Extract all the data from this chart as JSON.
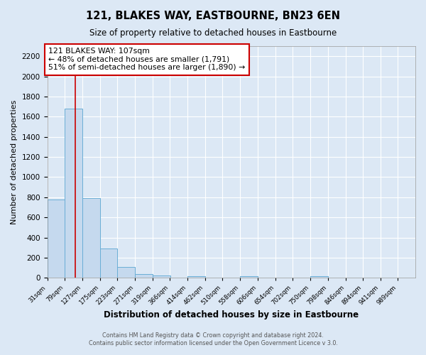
{
  "title": "121, BLAKES WAY, EASTBOURNE, BN23 6EN",
  "subtitle": "Size of property relative to detached houses in Eastbourne",
  "xlabel": "Distribution of detached houses by size in Eastbourne",
  "ylabel": "Number of detached properties",
  "bin_labels": [
    "31sqm",
    "79sqm",
    "127sqm",
    "175sqm",
    "223sqm",
    "271sqm",
    "319sqm",
    "366sqm",
    "414sqm",
    "462sqm",
    "510sqm",
    "558sqm",
    "606sqm",
    "654sqm",
    "702sqm",
    "750sqm",
    "798sqm",
    "846sqm",
    "894sqm",
    "941sqm",
    "989sqm"
  ],
  "bin_edges": [
    31,
    79,
    127,
    175,
    223,
    271,
    319,
    366,
    414,
    462,
    510,
    558,
    606,
    654,
    702,
    750,
    798,
    846,
    894,
    941,
    989
  ],
  "bar_heights": [
    775,
    1680,
    795,
    295,
    110,
    35,
    25,
    0,
    20,
    0,
    0,
    15,
    0,
    0,
    0,
    15,
    0,
    0,
    0,
    0
  ],
  "bar_color": "#c5d9ee",
  "bar_edge_color": "#6aaed6",
  "property_line_x": 107,
  "property_label": "121 BLAKES WAY: 107sqm",
  "annotation_line1": "← 48% of detached houses are smaller (1,791)",
  "annotation_line2": "51% of semi-detached houses are larger (1,890) →",
  "vline_color": "#cc0000",
  "ylim": [
    0,
    2300
  ],
  "yticks": [
    0,
    200,
    400,
    600,
    800,
    1000,
    1200,
    1400,
    1600,
    1800,
    2000,
    2200
  ],
  "footer1": "Contains HM Land Registry data © Crown copyright and database right 2024.",
  "footer2": "Contains public sector information licensed under the Open Government Licence v 3.0.",
  "bg_color": "#dce8f5",
  "plot_bg_color": "#dce8f5",
  "grid_color": "#ffffff",
  "box_edge_color": "#cc0000",
  "box_fill_color": "#ffffff"
}
